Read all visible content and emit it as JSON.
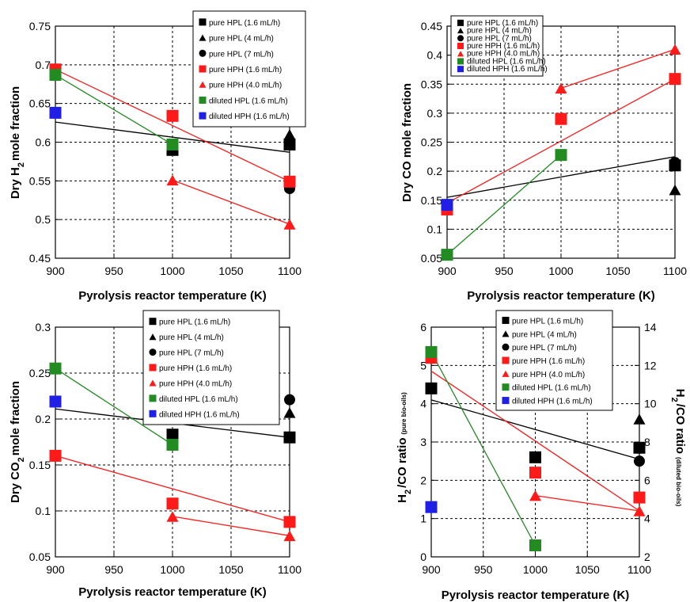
{
  "colors": {
    "black": "#000000",
    "red": "#ff1a1a",
    "green": "#228b22",
    "blue": "#1f1fe6"
  },
  "legend_labels": [
    "pure HPL (1.6 mL/h)",
    "pure HPL (4 mL/h)",
    "pure HPL (7 mL/h)",
    "pure HPH (1.6 mL/h)",
    "pure HPH (4.0 mL/h)",
    "diluted HPL (1.6 mL/h)",
    "diluted HPH (1.6 mL/h)"
  ],
  "legend_styles": [
    {
      "marker": "square",
      "color": "#000000"
    },
    {
      "marker": "triangle",
      "color": "#000000"
    },
    {
      "marker": "circle",
      "color": "#000000"
    },
    {
      "marker": "square",
      "color": "#ff1a1a"
    },
    {
      "marker": "triangle",
      "color": "#ff1a1a"
    },
    {
      "marker": "square",
      "color": "#228b22"
    },
    {
      "marker": "square",
      "color": "#1f1fe6"
    }
  ],
  "chart_data": [
    {
      "type": "scatter",
      "panel": "top-left",
      "xlabel": "Pyrolysis reactor temperature  (K)",
      "ylabel_parts": [
        "Dry H",
        "2",
        "mole fraction"
      ],
      "xlim": [
        900,
        1100
      ],
      "ylim": [
        0.45,
        0.75
      ],
      "xticks": [
        900,
        950,
        1000,
        1050,
        1100
      ],
      "xtick_labels": [
        "900",
        "950",
        "1000",
        "1050",
        "1100"
      ],
      "yticks": [
        0.45,
        0.5,
        0.55,
        0.6,
        0.65,
        0.7,
        0.75
      ],
      "ytick_labels": [
        "0.45",
        "0.5",
        "0.55",
        "0.6",
        "0.65",
        "0.7",
        "0.75"
      ],
      "grid": true,
      "legend": "top-right",
      "series": [
        {
          "name": "pure HPL (1.6 mL/h)",
          "marker": "square",
          "color": "#000000",
          "x": [
            1000,
            1100
          ],
          "y": [
            0.59,
            0.597
          ]
        },
        {
          "name": "pure HPL (4 mL/h)",
          "marker": "triangle",
          "color": "#000000",
          "x": [
            1100
          ],
          "y": [
            0.61
          ]
        },
        {
          "name": "pure HPL (7 mL/h)",
          "marker": "circle",
          "color": "#000000",
          "x": [
            1100
          ],
          "y": [
            0.54
          ]
        },
        {
          "name": "pure HPH (1.6 mL/h)",
          "marker": "square",
          "color": "#ff1a1a",
          "x": [
            900,
            1000,
            1100
          ],
          "y": [
            0.694,
            0.634,
            0.549
          ]
        },
        {
          "name": "pure HPH (4.0 mL/h)",
          "marker": "triangle",
          "color": "#ff1a1a",
          "x": [
            1000,
            1100
          ],
          "y": [
            0.551,
            0.494
          ]
        },
        {
          "name": "diluted HPL (1.6 mL/h)",
          "marker": "square",
          "color": "#228b22",
          "x": [
            900,
            1000
          ],
          "y": [
            0.687,
            0.597
          ]
        },
        {
          "name": "diluted HPH (1.6 mL/h)",
          "marker": "square",
          "color": "#1f1fe6",
          "x": [
            900
          ],
          "y": [
            0.638
          ]
        }
      ],
      "lines": [
        {
          "color": "#000000",
          "x": [
            900,
            1100
          ],
          "y": [
            0.626,
            0.587
          ]
        },
        {
          "color": "#ff1a1a",
          "x": [
            900,
            1100
          ],
          "y": [
            0.694,
            0.549
          ]
        },
        {
          "color": "#ff1a1a",
          "x": [
            1000,
            1100
          ],
          "y": [
            0.551,
            0.494
          ]
        },
        {
          "color": "#228b22",
          "x": [
            900,
            1000
          ],
          "y": [
            0.687,
            0.597
          ]
        }
      ]
    },
    {
      "type": "scatter",
      "panel": "top-right",
      "xlabel": "Pyrolysis reactor temperature (K)",
      "ylabel_parts": [
        "Dry CO mole fraction"
      ],
      "xlim": [
        900,
        1100
      ],
      "ylim": [
        0.05,
        0.45
      ],
      "xticks": [
        900,
        950,
        1000,
        1050,
        1100
      ],
      "xtick_labels": [
        "900",
        "950",
        "1000",
        "1050",
        "1100"
      ],
      "yticks": [
        0.05,
        0.1,
        0.15,
        0.2,
        0.25,
        0.3,
        0.35,
        0.4,
        0.45
      ],
      "ytick_labels": [
        "0.05",
        "0.1",
        "0.15",
        "0.2",
        "0.25",
        "0.3",
        "0.35",
        "0.4",
        "0.45"
      ],
      "grid": true,
      "legend": "top-left",
      "series": [
        {
          "name": "pure HPL (1.6 mL/h)",
          "marker": "square",
          "color": "#000000",
          "x": [
            1100
          ],
          "y": [
            0.21
          ]
        },
        {
          "name": "pure HPL (4 mL/h)",
          "marker": "triangle",
          "color": "#000000",
          "x": [
            1100
          ],
          "y": [
            0.168
          ]
        },
        {
          "name": "pure HPL (7 mL/h)",
          "marker": "circle",
          "color": "#000000",
          "x": [
            1100
          ],
          "y": [
            0.215
          ]
        },
        {
          "name": "pure HPH (1.6 mL/h)",
          "marker": "square",
          "color": "#ff1a1a",
          "x": [
            900,
            1000,
            1100
          ],
          "y": [
            0.134,
            0.29,
            0.359
          ]
        },
        {
          "name": "pure HPH (4.0 mL/h)",
          "marker": "triangle",
          "color": "#ff1a1a",
          "x": [
            1000,
            1100
          ],
          "y": [
            0.343,
            0.41
          ]
        },
        {
          "name": "diluted HPL (1.6 mL/h)",
          "marker": "square",
          "color": "#228b22",
          "x": [
            900,
            1000
          ],
          "y": [
            0.056,
            0.228
          ]
        },
        {
          "name": "diluted HPH (1.6 mL/h)",
          "marker": "square",
          "color": "#1f1fe6",
          "x": [
            900
          ],
          "y": [
            0.142
          ]
        }
      ],
      "lines": [
        {
          "color": "#000000",
          "x": [
            900,
            1100
          ],
          "y": [
            0.155,
            0.225
          ]
        },
        {
          "color": "#ff1a1a",
          "x": [
            900,
            1100
          ],
          "y": [
            0.145,
            0.359
          ]
        },
        {
          "color": "#ff1a1a",
          "x": [
            1000,
            1100
          ],
          "y": [
            0.343,
            0.41
          ]
        },
        {
          "color": "#228b22",
          "x": [
            900,
            1000
          ],
          "y": [
            0.056,
            0.228
          ]
        }
      ]
    },
    {
      "type": "scatter",
      "panel": "bottom-left",
      "xlabel": "Pyrolysis reactor temperature (K)",
      "ylabel_parts": [
        "Dry CO",
        "2",
        "mole fraction"
      ],
      "xlim": [
        900,
        1100
      ],
      "ylim": [
        0.05,
        0.3
      ],
      "xticks": [
        900,
        950,
        1000,
        1050,
        1100
      ],
      "xtick_labels": [
        "900",
        "950",
        "1000",
        "1050",
        "1100"
      ],
      "yticks": [
        0.05,
        0.1,
        0.15,
        0.2,
        0.25,
        0.3
      ],
      "ytick_labels": [
        "0.05",
        "0.1",
        "0.15",
        "0.2",
        "0.25",
        "0.3"
      ],
      "grid": true,
      "legend": "top-right",
      "series": [
        {
          "name": "pure HPL (1.6 mL/h)",
          "marker": "square",
          "color": "#000000",
          "x": [
            1000,
            1100
          ],
          "y": [
            0.183,
            0.18
          ]
        },
        {
          "name": "pure HPL (4 mL/h)",
          "marker": "triangle",
          "color": "#000000",
          "x": [
            1100
          ],
          "y": [
            0.207
          ]
        },
        {
          "name": "pure HPL (7 mL/h)",
          "marker": "circle",
          "color": "#000000",
          "x": [
            1100
          ],
          "y": [
            0.221
          ]
        },
        {
          "name": "pure HPH (1.6 mL/h)",
          "marker": "square",
          "color": "#ff1a1a",
          "x": [
            900,
            1000,
            1100
          ],
          "y": [
            0.16,
            0.108,
            0.088
          ]
        },
        {
          "name": "pure HPH (4.0 mL/h)",
          "marker": "triangle",
          "color": "#ff1a1a",
          "x": [
            1000,
            1100
          ],
          "y": [
            0.094,
            0.073
          ]
        },
        {
          "name": "diluted HPL (1.6 mL/h)",
          "marker": "square",
          "color": "#228b22",
          "x": [
            900,
            1000
          ],
          "y": [
            0.255,
            0.172
          ]
        },
        {
          "name": "diluted HPH (1.6 mL/h)",
          "marker": "square",
          "color": "#1f1fe6",
          "x": [
            900
          ],
          "y": [
            0.219
          ]
        }
      ],
      "lines": [
        {
          "color": "#000000",
          "x": [
            900,
            1100
          ],
          "y": [
            0.211,
            0.18
          ]
        },
        {
          "color": "#ff1a1a",
          "x": [
            900,
            1100
          ],
          "y": [
            0.16,
            0.088
          ]
        },
        {
          "color": "#ff1a1a",
          "x": [
            1000,
            1100
          ],
          "y": [
            0.094,
            0.073
          ]
        },
        {
          "color": "#228b22",
          "x": [
            900,
            1000
          ],
          "y": [
            0.255,
            0.172
          ]
        }
      ]
    },
    {
      "type": "scatter",
      "panel": "bottom-right",
      "xlabel": "Pyrolysis reactor temperature (K)",
      "ylabel_parts": [
        "H",
        "2",
        "/CO ratio",
        "(pure bio-oils)"
      ],
      "y2label_parts": [
        "H",
        "2",
        "/CO ratio",
        "(diluted bio-oils)"
      ],
      "xlim": [
        900,
        1100
      ],
      "ylim": [
        0,
        6
      ],
      "y2lim": [
        2,
        14
      ],
      "xticks": [
        900,
        950,
        1000,
        1050,
        1100
      ],
      "xtick_labels": [
        "900",
        "950",
        "1000",
        "1050",
        "1100"
      ],
      "yticks": [
        0,
        1,
        2,
        3,
        4,
        5,
        6
      ],
      "ytick_labels": [
        "0",
        "1",
        "2",
        "3",
        "4",
        "5",
        "6"
      ],
      "y2ticks": [
        2,
        4,
        6,
        8,
        10,
        12,
        14
      ],
      "y2tick_labels": [
        "2",
        "4",
        "6",
        "8",
        "10",
        "12",
        "14"
      ],
      "grid": true,
      "legend": "top-right",
      "series": [
        {
          "name": "pure HPL (1.6 mL/h)",
          "marker": "square",
          "color": "#000000",
          "x": [
            900,
            1000,
            1100
          ],
          "y": [
            4.4,
            2.6,
            2.85
          ]
        },
        {
          "name": "pure HPL (4 mL/h)",
          "marker": "triangle",
          "color": "#000000",
          "x": [
            1100
          ],
          "y": [
            3.6
          ]
        },
        {
          "name": "pure HPL (7 mL/h)",
          "marker": "circle",
          "color": "#000000",
          "x": [
            1100
          ],
          "y": [
            2.5
          ]
        },
        {
          "name": "pure HPH (1.6 mL/h)",
          "marker": "square",
          "color": "#ff1a1a",
          "x": [
            900,
            1000,
            1100
          ],
          "y": [
            5.2,
            2.2,
            1.55
          ]
        },
        {
          "name": "pure HPH (4.0 mL/h)",
          "marker": "triangle",
          "color": "#ff1a1a",
          "x": [
            1000,
            1100
          ],
          "y": [
            1.6,
            1.2
          ]
        },
        {
          "name": "diluted HPL (1.6 mL/h)",
          "marker": "square",
          "color": "#228b22",
          "axis": "right",
          "x": [
            900,
            1000
          ],
          "y": [
            12.7,
            2.6
          ]
        },
        {
          "name": "diluted HPH (1.6 mL/h)",
          "marker": "square",
          "color": "#1f1fe6",
          "x": [
            900
          ],
          "y": [
            1.3
          ]
        }
      ],
      "lines": [
        {
          "color": "#000000",
          "x": [
            900,
            1100
          ],
          "y": [
            4.1,
            2.55
          ]
        },
        {
          "color": "#ff1a1a",
          "x": [
            900,
            1100
          ],
          "y": [
            4.85,
            1.2
          ]
        },
        {
          "color": "#ff1a1a",
          "x": [
            1000,
            1100
          ],
          "y": [
            1.6,
            1.2
          ]
        },
        {
          "color": "#228b22",
          "x": [
            900,
            1000
          ],
          "y": [
            5.35,
            0.3
          ]
        }
      ]
    }
  ]
}
